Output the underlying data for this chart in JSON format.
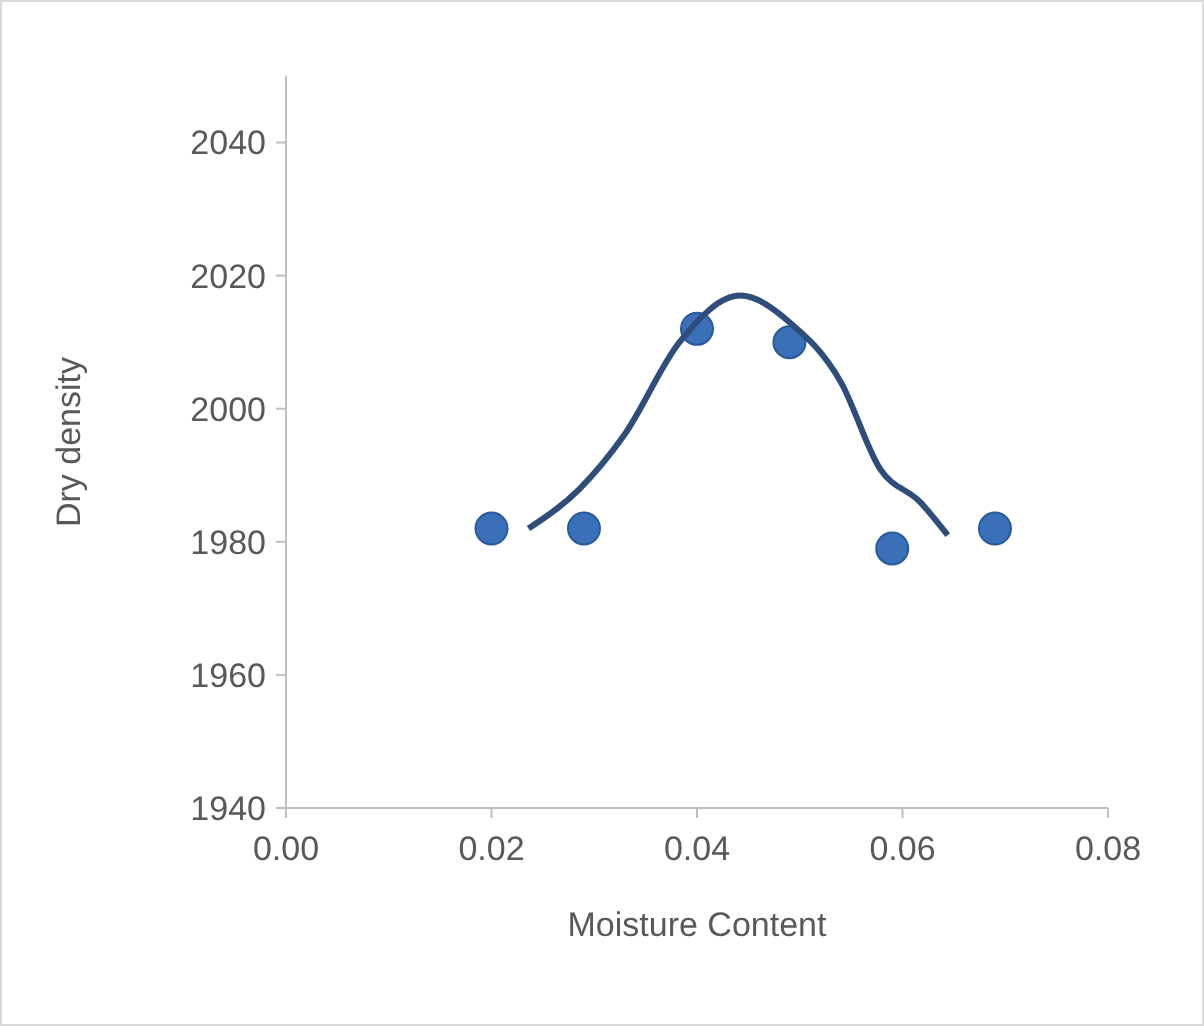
{
  "chart_data": {
    "type": "scatter",
    "xlabel": "Moisture Content",
    "ylabel": "Dry density",
    "xlim": [
      0,
      0.08
    ],
    "xticks": [
      {
        "value": 0,
        "label": "0.00"
      },
      {
        "value": 0.02,
        "label": "0.02"
      },
      {
        "value": 0.04,
        "label": "0.04"
      },
      {
        "value": 0.06,
        "label": "0.06"
      },
      {
        "value": 0.08,
        "label": "0.08"
      }
    ],
    "ylim": [
      1940,
      2050
    ],
    "yticks": [
      1940,
      1960,
      1980,
      2000,
      2020,
      2040
    ],
    "grid": false,
    "series": [
      {
        "color": "#3a70b8",
        "marker": "circle",
        "x": [
          0.02,
          0.029,
          0.04,
          0.049,
          0.059,
          0.069
        ],
        "values": [
          1982,
          1982,
          2012,
          2010,
          1979,
          1982
        ]
      },
      {
        "type": "line",
        "color": "#2e4d7b",
        "marker": "none",
        "line_style": "solid",
        "x": [
          0.0236,
          0.0286,
          0.0329,
          0.0383,
          0.0442,
          0.049,
          0.054,
          0.0578,
          0.0617,
          0.0644
        ],
        "values": [
          1982,
          1988,
          1996,
          2010,
          2017,
          2013,
          2004,
          1991,
          1986,
          1981
        ]
      }
    ]
  }
}
